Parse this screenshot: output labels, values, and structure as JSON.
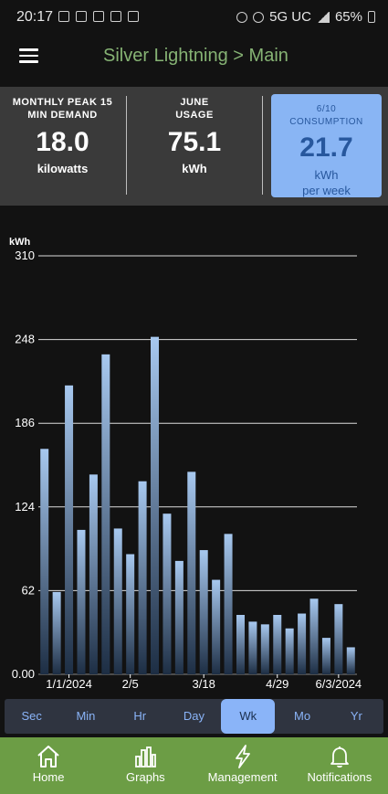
{
  "status_bar": {
    "time": "20:17",
    "network": "5G UC",
    "battery": "65%"
  },
  "app_bar": {
    "title": "Silver Lightning > Main",
    "menu_icon": "hamburger-menu-icon"
  },
  "summary": {
    "peak": {
      "caption_line1": "MONTHLY PEAK 15",
      "caption_line2": "MIN DEMAND",
      "value": "18.0",
      "unit": "kilowatts"
    },
    "usage": {
      "caption_line1": "JUNE",
      "caption_line2": "USAGE",
      "value": "75.1",
      "unit": "kWh"
    },
    "consumption": {
      "caption_line1": "6/10",
      "caption_line2": "CONSUMPTION",
      "value": "21.7",
      "unit_line1": "kWh",
      "unit_line2": "per week"
    },
    "colors": {
      "highlight_card": "#89b5f4",
      "highlight_text": "#27579d"
    }
  },
  "chart_data": {
    "type": "bar",
    "ylabel": "kWh",
    "yticks": [
      "310",
      "248",
      "186",
      "124",
      "62",
      "0.00"
    ],
    "ytick_values": [
      310,
      248,
      186,
      124,
      62,
      0
    ],
    "ylim": [
      0,
      310
    ],
    "xtick_labels": [
      "1/1/2024",
      "2/5",
      "3/18",
      "4/29",
      "6/3/2024"
    ],
    "xtick_positions": [
      2,
      7,
      13,
      19,
      24
    ],
    "values": [
      167,
      61,
      214,
      107,
      148,
      237,
      108,
      89,
      143,
      250,
      119,
      84,
      150,
      92,
      70,
      104,
      44,
      39,
      37,
      44,
      34,
      45,
      56,
      27,
      52,
      20
    ],
    "grid": true,
    "bar_color_top": "#a7c8ef",
    "bar_color_bottom": "#1d2e44"
  },
  "tabs": {
    "items": [
      "Sec",
      "Min",
      "Hr",
      "Day",
      "Wk",
      "Mo",
      "Yr"
    ],
    "active": "Wk"
  },
  "bottom_nav": {
    "items": [
      {
        "label": "Home",
        "icon": "home-icon"
      },
      {
        "label": "Graphs",
        "icon": "bar-chart-icon"
      },
      {
        "label": "Management",
        "icon": "lightning-icon"
      },
      {
        "label": "Notifications",
        "icon": "bell-icon"
      }
    ],
    "background": "#6c9d45"
  }
}
